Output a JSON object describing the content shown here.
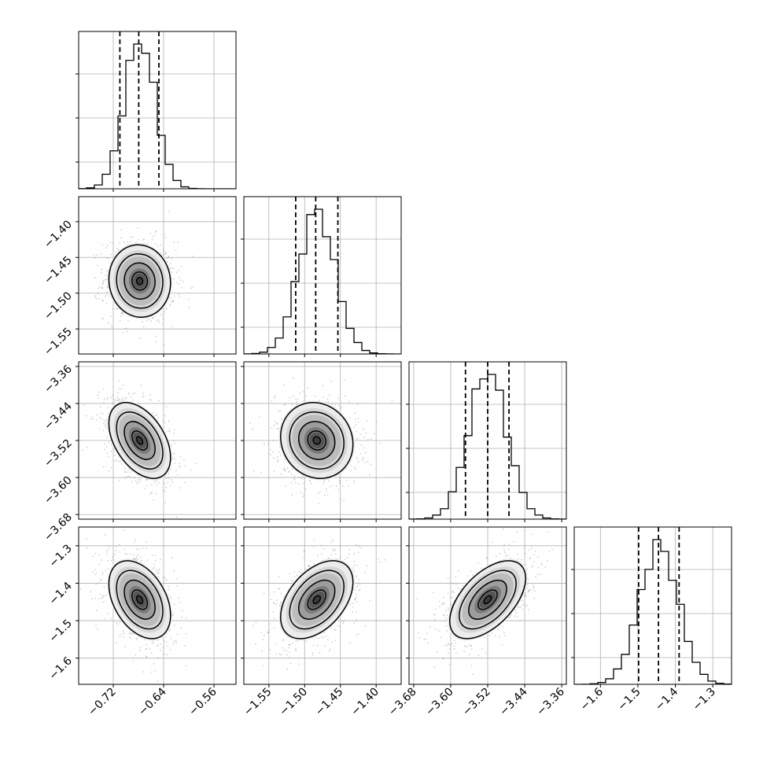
{
  "chart_data": {
    "type": "corner",
    "title": "",
    "grid": true,
    "parameters": [
      {
        "range": [
          -0.775,
          -0.525
        ],
        "ticks": [
          -0.72,
          -0.64,
          -0.56
        ],
        "tick_labels": [
          "−0.72",
          "−0.64",
          "−0.56"
        ]
      },
      {
        "range": [
          -1.585,
          -1.365
        ],
        "ticks": [
          -1.55,
          -1.5,
          -1.45,
          -1.4
        ],
        "tick_labels": [
          "−1.55",
          "−1.50",
          "−1.45",
          "−1.40"
        ]
      },
      {
        "range": [
          -3.69,
          -3.35
        ],
        "ticks": [
          -3.68,
          -3.6,
          -3.52,
          -3.44,
          -3.36
        ],
        "tick_labels": [
          "−3.68",
          "−3.60",
          "−3.52",
          "−3.44",
          "−3.36"
        ]
      },
      {
        "range": [
          -1.67,
          -1.25
        ],
        "ticks": [
          -1.6,
          -1.5,
          -1.4,
          -1.3
        ],
        "tick_labels": [
          "−1.6",
          "−1.5",
          "−1.4",
          "−1.3"
        ]
      }
    ],
    "marginals": [
      {
        "param": 0,
        "quantiles": [
          -0.7095,
          -0.6795,
          -0.6475
        ],
        "mean": -0.678,
        "sd": 0.0245
      },
      {
        "param": 1,
        "quantiles": [
          -1.5125,
          -1.4845,
          -1.4535
        ],
        "mean": -1.483,
        "sd": 0.0253
      },
      {
        "param": 2,
        "quantiles": [
          -3.568,
          -3.52,
          -3.474
        ],
        "mean": -3.52,
        "sd": 0.041
      },
      {
        "param": 3,
        "quantiles": [
          -1.498,
          -1.445,
          -1.39
        ],
        "mean": -1.444,
        "sd": 0.052
      }
    ],
    "correlations": [
      {
        "pair": [
          0,
          1
        ],
        "r": -0.05
      },
      {
        "pair": [
          0,
          2
        ],
        "r": -0.45
      },
      {
        "pair": [
          1,
          2
        ],
        "r": -0.1
      },
      {
        "pair": [
          0,
          3
        ],
        "r": -0.4
      },
      {
        "pair": [
          1,
          3
        ],
        "r": 0.45
      },
      {
        "pair": [
          2,
          3
        ],
        "r": 0.55
      }
    ]
  },
  "style": {
    "line_color": "#000000",
    "grid_color": "#b0b0b0",
    "point_color": "#9a9a9a"
  }
}
